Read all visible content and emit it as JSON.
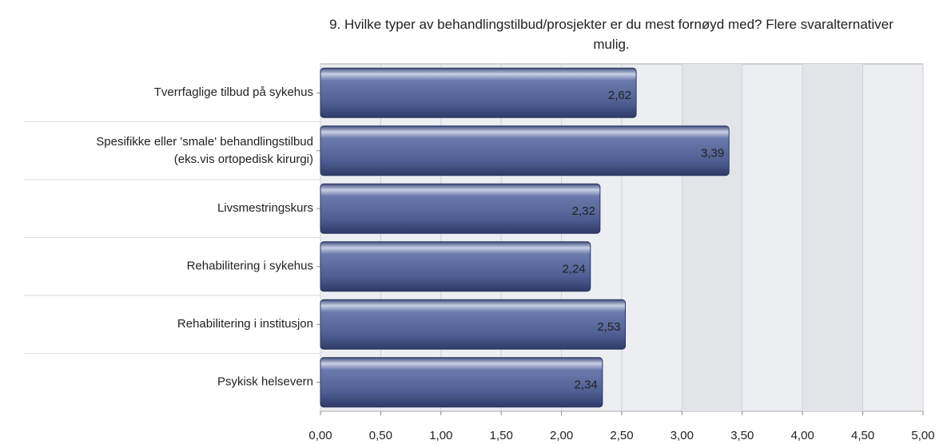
{
  "chart_data": {
    "type": "barh",
    "title": "9. Hvilke typer av behandlingstilbud/prosjekter er du mest fornøyd med? Flere svaralternativer mulig.",
    "categories": [
      "Tverrfaglige tilbud på sykehus",
      "Spesifikke eller 'smale' behandlingstilbud\n(eks.vis ortopedisk kirurgi)",
      "Livsmestringskurs",
      "Rehabilitering i sykehus",
      "Rehabilitering i institusjon",
      "Psykisk helsevern"
    ],
    "values": [
      2.62,
      3.39,
      2.32,
      2.24,
      2.53,
      2.34
    ],
    "value_labels": [
      "2,62",
      "3,39",
      "2,32",
      "2,24",
      "2,53",
      "2,34"
    ],
    "color": "#4f5f93",
    "xlim": [
      0,
      5
    ],
    "xticks": [
      {
        "value": 0,
        "label": "0,00"
      },
      {
        "value": 0.5,
        "label": "0,50"
      },
      {
        "value": 1,
        "label": "1,00"
      },
      {
        "value": 1.5,
        "label": "1,50"
      },
      {
        "value": 2,
        "label": "2,00"
      },
      {
        "value": 2.5,
        "label": "2,50"
      },
      {
        "value": 3,
        "label": "3,00"
      },
      {
        "value": 3.5,
        "label": "3,50"
      },
      {
        "value": 4,
        "label": "4,00"
      },
      {
        "value": 4.5,
        "label": "4,50"
      },
      {
        "value": 5,
        "label": "5,00"
      }
    ],
    "grid": true
  }
}
